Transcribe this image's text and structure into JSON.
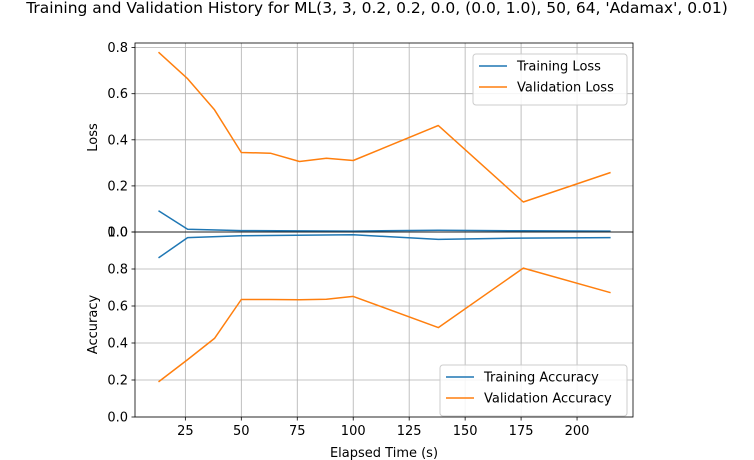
{
  "chart_data": {
    "title": "Training and Validation History for ML(3, 3, 0.2, 0.2, 0.0, (0.0, 1.0), 50, 64, 'Adamax', 0.01)",
    "xlabel": "Elapsed Time (s)",
    "xticks": [
      25,
      50,
      75,
      100,
      125,
      150,
      175,
      200
    ],
    "xlim": [
      2.5,
      225
    ],
    "grid": true,
    "subplots": [
      {
        "type": "line",
        "ylabel": "Loss",
        "ylim": [
          0,
          0.82
        ],
        "yticks": [
          "0.0",
          "0.2",
          "0.4",
          "0.6",
          "0.8"
        ],
        "legend_position": "upper right",
        "series": [
          {
            "name": "Training Loss",
            "color": "#1f77b4",
            "x": [
              13,
              26,
              50,
              100,
              138,
              175,
              215
            ],
            "y": [
              0.092,
              0.012,
              0.006,
              0.004,
              0.008,
              0.005,
              0.004
            ]
          },
          {
            "name": "Validation Loss",
            "color": "#ff7f0e",
            "x": [
              13,
              26,
              38,
              50,
              63,
              76,
              88,
              100,
              138,
              176,
              215
            ],
            "y": [
              0.78,
              0.665,
              0.53,
              0.345,
              0.342,
              0.306,
              0.32,
              0.31,
              0.462,
              0.13,
              0.258
            ]
          }
        ]
      },
      {
        "type": "line",
        "ylabel": "Accuracy",
        "ylim": [
          0,
          1.0
        ],
        "yticks": [
          "0.0",
          "0.2",
          "0.4",
          "0.6",
          "0.8",
          "1.0"
        ],
        "legend_position": "lower right",
        "series": [
          {
            "name": "Training Accuracy",
            "color": "#1f77b4",
            "x": [
              13,
              26,
              50,
              100,
              138,
              175,
              215
            ],
            "y": [
              0.86,
              0.97,
              0.98,
              0.985,
              0.96,
              0.967,
              0.97
            ]
          },
          {
            "name": "Validation Accuracy",
            "color": "#ff7f0e",
            "x": [
              13,
              26,
              38,
              50,
              63,
              76,
              88,
              100,
              138,
              176,
              215
            ],
            "y": [
              0.19,
              0.31,
              0.425,
              0.635,
              0.635,
              0.634,
              0.637,
              0.652,
              0.483,
              0.805,
              0.672
            ]
          }
        ]
      }
    ]
  }
}
